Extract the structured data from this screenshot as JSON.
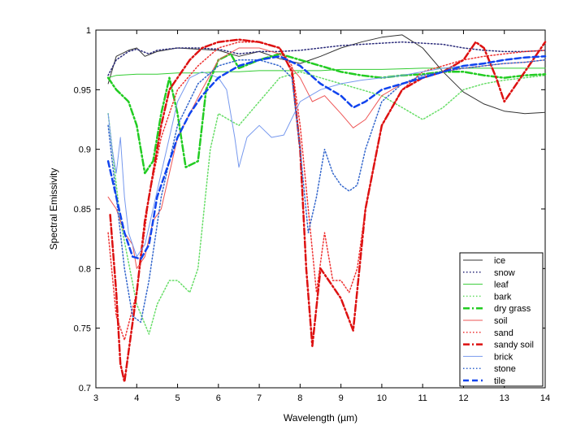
{
  "chart_data": {
    "type": "line",
    "title": "",
    "xlabel": "Wavelength  (µm)",
    "ylabel": "Spectral Emissivity",
    "xlim": [
      3,
      14
    ],
    "ylim": [
      0.7,
      1.0
    ],
    "xticks": [
      3,
      4,
      5,
      6,
      7,
      8,
      9,
      10,
      11,
      12,
      13,
      14
    ],
    "yticks": [
      0.7,
      0.75,
      0.8,
      0.85,
      0.9,
      0.95,
      1
    ],
    "ytick_labels": [
      "0.7",
      "0.75",
      "0.8",
      "0.85",
      "0.9",
      "0.95",
      "1"
    ],
    "grid": false,
    "legend_position": "bottom-right",
    "series": [
      {
        "name": "ice",
        "color": "#333333",
        "style": "solid",
        "width": 1,
        "x": [
          3.3,
          3.5,
          3.8,
          4.0,
          4.2,
          4.5,
          5.0,
          5.5,
          6.0,
          6.5,
          7.0,
          7.5,
          8.0,
          8.5,
          9.0,
          9.5,
          10.0,
          10.5,
          11.0,
          11.5,
          12.0,
          12.5,
          13.0,
          13.5,
          14.0
        ],
        "y": [
          0.955,
          0.978,
          0.983,
          0.985,
          0.978,
          0.982,
          0.985,
          0.984,
          0.983,
          0.978,
          0.982,
          0.976,
          0.972,
          0.978,
          0.985,
          0.99,
          0.994,
          0.996,
          0.985,
          0.965,
          0.948,
          0.938,
          0.932,
          0.93,
          0.931
        ]
      },
      {
        "name": "snow",
        "color": "#2a2a7a",
        "style": "dotted",
        "width": 1.5,
        "x": [
          3.3,
          3.5,
          3.8,
          4.0,
          4.3,
          4.5,
          5.0,
          5.5,
          6.0,
          6.5,
          7.0,
          7.5,
          8.0,
          8.5,
          9.0,
          9.5,
          10.0,
          10.5,
          11.0,
          11.5,
          12.0,
          12.5,
          13.0,
          13.5,
          14.0
        ],
        "y": [
          0.962,
          0.975,
          0.982,
          0.984,
          0.98,
          0.983,
          0.985,
          0.985,
          0.984,
          0.98,
          0.982,
          0.982,
          0.983,
          0.985,
          0.987,
          0.988,
          0.989,
          0.99,
          0.989,
          0.988,
          0.985,
          0.983,
          0.982,
          0.982,
          0.983
        ]
      },
      {
        "name": "leaf",
        "color": "#33cc33",
        "style": "solid",
        "width": 1,
        "x": [
          3.3,
          3.5,
          4.0,
          4.5,
          5.0,
          5.5,
          6.0,
          6.5,
          7.0,
          7.5,
          8.0,
          8.5,
          9.0,
          9.5,
          10.0,
          11.0,
          12.0,
          13.0,
          14.0
        ],
        "y": [
          0.96,
          0.962,
          0.963,
          0.963,
          0.964,
          0.964,
          0.965,
          0.965,
          0.966,
          0.966,
          0.966,
          0.966,
          0.967,
          0.967,
          0.967,
          0.968,
          0.968,
          0.968,
          0.968
        ]
      },
      {
        "name": "bark",
        "color": "#66dd66",
        "style": "dotted",
        "width": 1.5,
        "x": [
          3.3,
          3.6,
          4.0,
          4.3,
          4.5,
          4.8,
          5.0,
          5.3,
          5.5,
          5.8,
          6.0,
          6.5,
          7.0,
          7.5,
          8.0,
          8.5,
          9.0,
          9.5,
          10.0,
          10.5,
          11.0,
          11.5,
          12.0,
          12.5,
          13.0,
          13.5,
          14.0
        ],
        "y": [
          0.93,
          0.84,
          0.77,
          0.745,
          0.77,
          0.79,
          0.79,
          0.78,
          0.8,
          0.9,
          0.93,
          0.92,
          0.94,
          0.96,
          0.965,
          0.96,
          0.955,
          0.95,
          0.945,
          0.935,
          0.925,
          0.935,
          0.95,
          0.955,
          0.958,
          0.96,
          0.962
        ]
      },
      {
        "name": "dry grass",
        "color": "#22cc22",
        "style": "dashdot",
        "width": 2.5,
        "x": [
          3.3,
          3.5,
          3.8,
          4.0,
          4.2,
          4.4,
          4.6,
          4.8,
          5.0,
          5.2,
          5.5,
          5.7,
          6.0,
          6.3,
          6.5,
          7.0,
          7.5,
          8.0,
          8.5,
          9.0,
          9.5,
          10.0,
          10.5,
          11.0,
          11.5,
          12.0,
          12.5,
          13.0,
          13.5,
          14.0
        ],
        "y": [
          0.96,
          0.95,
          0.94,
          0.92,
          0.88,
          0.89,
          0.93,
          0.96,
          0.93,
          0.885,
          0.89,
          0.95,
          0.975,
          0.98,
          0.968,
          0.975,
          0.98,
          0.975,
          0.97,
          0.965,
          0.962,
          0.96,
          0.962,
          0.963,
          0.965,
          0.965,
          0.962,
          0.96,
          0.962,
          0.963
        ]
      },
      {
        "name": "soil",
        "color": "#ee5555",
        "style": "solid",
        "width": 1,
        "x": [
          3.3,
          3.5,
          3.7,
          3.9,
          4.0,
          4.2,
          4.4,
          4.6,
          4.8,
          5.0,
          5.3,
          5.6,
          6.0,
          6.5,
          7.0,
          7.5,
          8.0,
          8.3,
          8.6,
          9.0,
          9.3,
          9.6,
          10.0,
          10.5,
          11.0,
          11.5,
          12.0,
          12.5,
          13.0,
          13.5,
          14.0
        ],
        "y": [
          0.86,
          0.85,
          0.83,
          0.82,
          0.8,
          0.81,
          0.84,
          0.85,
          0.88,
          0.91,
          0.93,
          0.95,
          0.975,
          0.985,
          0.985,
          0.98,
          0.96,
          0.94,
          0.945,
          0.93,
          0.918,
          0.925,
          0.945,
          0.955,
          0.96,
          0.965,
          0.968,
          0.97,
          0.972,
          0.973,
          0.975
        ]
      },
      {
        "name": "sand",
        "color": "#ee3333",
        "style": "dotted",
        "width": 1.5,
        "x": [
          3.3,
          3.5,
          3.7,
          4.0,
          4.3,
          4.6,
          5.0,
          5.5,
          6.0,
          6.5,
          7.0,
          7.5,
          7.8,
          8.0,
          8.2,
          8.4,
          8.6,
          8.8,
          9.0,
          9.2,
          9.4,
          9.6,
          10.0,
          10.5,
          11.0,
          11.5,
          12.0,
          12.5,
          13.0,
          13.5,
          14.0
        ],
        "y": [
          0.83,
          0.76,
          0.74,
          0.78,
          0.86,
          0.91,
          0.95,
          0.97,
          0.985,
          0.99,
          0.99,
          0.985,
          0.97,
          0.92,
          0.85,
          0.78,
          0.83,
          0.79,
          0.79,
          0.78,
          0.8,
          0.85,
          0.92,
          0.95,
          0.965,
          0.97,
          0.975,
          0.978,
          0.98,
          0.982,
          0.983
        ]
      },
      {
        "name": "sandy soil",
        "color": "#dd1111",
        "style": "dashdot",
        "width": 2.5,
        "x": [
          3.35,
          3.5,
          3.6,
          3.7,
          3.8,
          4.0,
          4.2,
          4.4,
          4.6,
          4.8,
          5.0,
          5.3,
          5.6,
          6.0,
          6.5,
          7.0,
          7.5,
          7.8,
          8.0,
          8.15,
          8.3,
          8.5,
          8.7,
          9.0,
          9.3,
          9.6,
          10.0,
          10.5,
          11.0,
          11.5,
          12.0,
          12.3,
          12.5,
          12.8,
          13.0,
          13.5,
          14.0
        ],
        "y": [
          0.845,
          0.78,
          0.72,
          0.705,
          0.73,
          0.78,
          0.84,
          0.88,
          0.92,
          0.95,
          0.96,
          0.975,
          0.985,
          0.99,
          0.992,
          0.99,
          0.985,
          0.965,
          0.9,
          0.8,
          0.735,
          0.8,
          0.79,
          0.775,
          0.748,
          0.85,
          0.92,
          0.95,
          0.96,
          0.965,
          0.975,
          0.99,
          0.985,
          0.96,
          0.94,
          0.965,
          0.99
        ]
      },
      {
        "name": "brick",
        "color": "#7799ee",
        "style": "solid",
        "width": 1,
        "x": [
          3.3,
          3.4,
          3.5,
          3.6,
          3.7,
          3.8,
          4.0,
          4.2,
          4.4,
          4.6,
          4.8,
          5.0,
          5.3,
          5.6,
          6.0,
          6.2,
          6.4,
          6.5,
          6.7,
          7.0,
          7.3,
          7.6,
          8.0,
          8.5,
          9.0,
          9.5,
          10.0,
          10.5,
          11.0,
          11.5,
          12.0,
          12.5,
          13.0,
          13.5,
          14.0
        ],
        "y": [
          0.93,
          0.9,
          0.88,
          0.91,
          0.86,
          0.83,
          0.81,
          0.82,
          0.85,
          0.88,
          0.91,
          0.94,
          0.96,
          0.965,
          0.96,
          0.95,
          0.91,
          0.885,
          0.91,
          0.92,
          0.91,
          0.912,
          0.94,
          0.95,
          0.955,
          0.958,
          0.96,
          0.962,
          0.965,
          0.968,
          0.97,
          0.972,
          0.975,
          0.977,
          0.978
        ]
      },
      {
        "name": "stone",
        "color": "#3366cc",
        "style": "dotted",
        "width": 1.5,
        "x": [
          3.3,
          3.5,
          3.7,
          3.9,
          4.1,
          4.3,
          4.6,
          5.0,
          5.5,
          6.0,
          6.5,
          7.0,
          7.5,
          7.8,
          8.0,
          8.2,
          8.4,
          8.6,
          8.8,
          9.0,
          9.2,
          9.4,
          9.6,
          10.0,
          10.5,
          11.0,
          11.5,
          12.0,
          12.5,
          13.0,
          13.5,
          14.0
        ],
        "y": [
          0.92,
          0.86,
          0.8,
          0.76,
          0.755,
          0.79,
          0.86,
          0.92,
          0.955,
          0.97,
          0.975,
          0.975,
          0.97,
          0.96,
          0.9,
          0.83,
          0.86,
          0.9,
          0.88,
          0.87,
          0.865,
          0.87,
          0.9,
          0.94,
          0.955,
          0.962,
          0.965,
          0.968,
          0.97,
          0.972,
          0.973,
          0.975
        ]
      },
      {
        "name": "tile",
        "color": "#1144ee",
        "style": "dashed",
        "width": 2.5,
        "x": [
          3.3,
          3.5,
          3.7,
          3.9,
          4.1,
          4.3,
          4.5,
          4.8,
          5.0,
          5.3,
          5.6,
          6.0,
          6.5,
          7.0,
          7.5,
          8.0,
          8.5,
          9.0,
          9.3,
          9.6,
          10.0,
          10.5,
          11.0,
          11.5,
          12.0,
          12.5,
          13.0,
          13.5,
          14.0
        ],
        "y": [
          0.89,
          0.86,
          0.83,
          0.81,
          0.808,
          0.82,
          0.86,
          0.89,
          0.91,
          0.93,
          0.945,
          0.96,
          0.97,
          0.975,
          0.978,
          0.97,
          0.955,
          0.945,
          0.935,
          0.94,
          0.95,
          0.955,
          0.96,
          0.965,
          0.97,
          0.972,
          0.975,
          0.977,
          0.978
        ]
      }
    ]
  }
}
